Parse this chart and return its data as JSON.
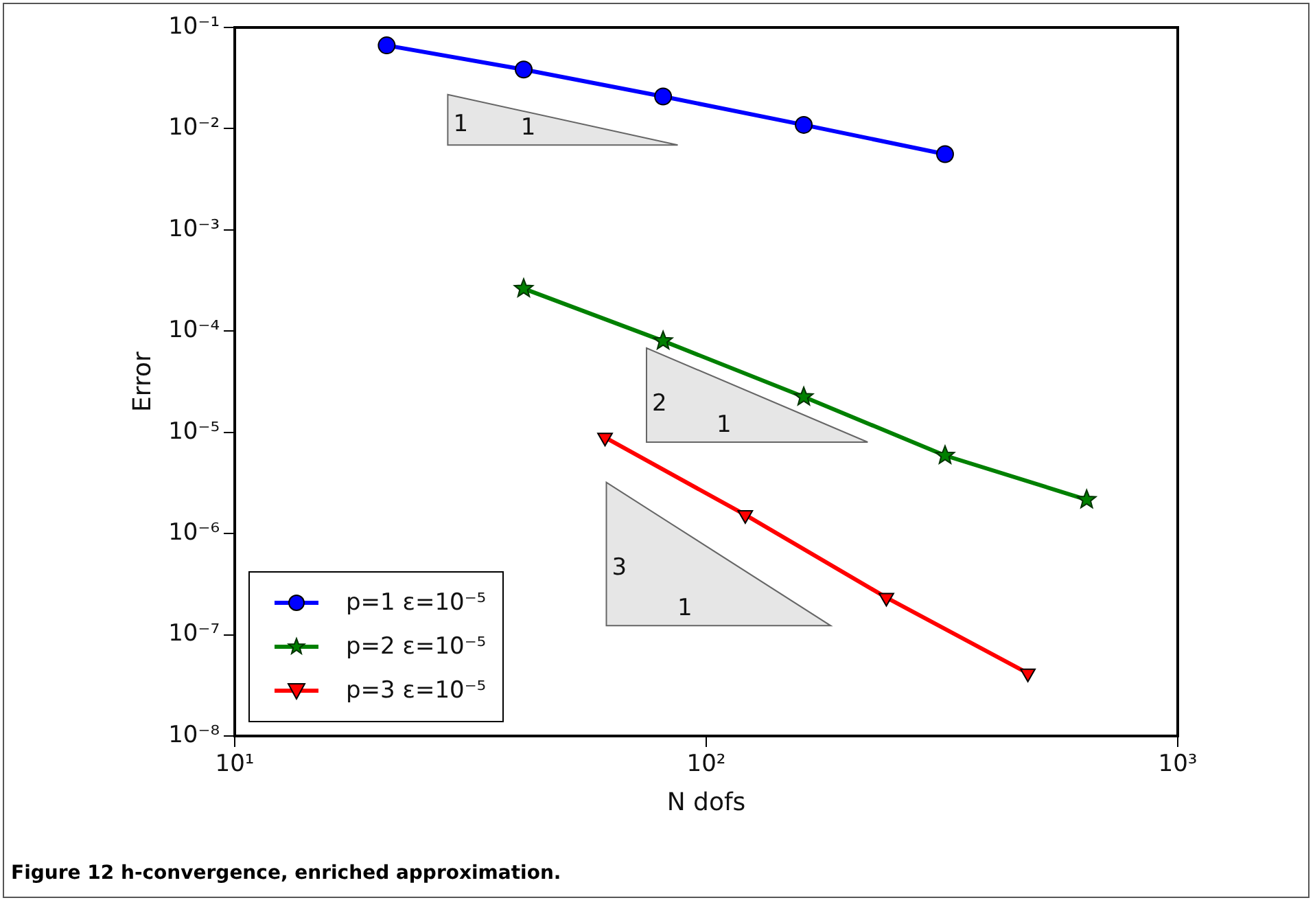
{
  "chart_data": {
    "type": "line",
    "xlabel": "N dofs",
    "ylabel": "Error",
    "log": "xy",
    "grid": false,
    "legend": "bottom left",
    "xlim": [
      10,
      1000
    ],
    "xticks": [
      {
        "value": 10,
        "label": "10¹"
      },
      {
        "value": 100,
        "label": "10²"
      },
      {
        "value": 1000,
        "label": "10³"
      }
    ],
    "ylim": [
      1e-08,
      0.1
    ],
    "yticks": [
      {
        "value": 1e-08,
        "label": "10⁻⁸"
      },
      {
        "value": 1e-07,
        "label": "10⁻⁷"
      },
      {
        "value": 1e-06,
        "label": "10⁻⁶"
      },
      {
        "value": 1e-05,
        "label": "10⁻⁵"
      },
      {
        "value": 0.0001,
        "label": "10⁻⁴"
      },
      {
        "value": 0.001,
        "label": "10⁻³"
      },
      {
        "value": 0.01,
        "label": "10⁻²"
      },
      {
        "value": 0.1,
        "label": "10⁻¹"
      }
    ],
    "series": [
      {
        "name": "p=1 ε=10⁻⁵",
        "color": "#0000ff",
        "marker": "circle",
        "x": [
          21,
          41,
          81,
          161,
          321
        ],
        "values": [
          0.0665,
          0.0384,
          0.0208,
          0.0109,
          0.0056
        ]
      },
      {
        "name": "p=2 ε=10⁻⁵",
        "color": "#008000",
        "marker": "star",
        "x": [
          41,
          81,
          161,
          321,
          641
        ],
        "values": [
          0.000263,
          8e-05,
          2.24e-05,
          5.9e-06,
          2.16e-06
        ]
      },
      {
        "name": "p=3 ε=10⁻⁵",
        "color": "#ff0000",
        "marker": "triangle",
        "x": [
          61,
          121,
          241,
          481
        ],
        "values": [
          8.9e-06,
          1.53e-06,
          2.33e-07,
          4.16e-08
        ]
      }
    ],
    "annotations": [
      "1",
      "1",
      "2",
      "1",
      "3",
      "1",
      "Figure 12 h-convergence, enriched approximation."
    ]
  }
}
